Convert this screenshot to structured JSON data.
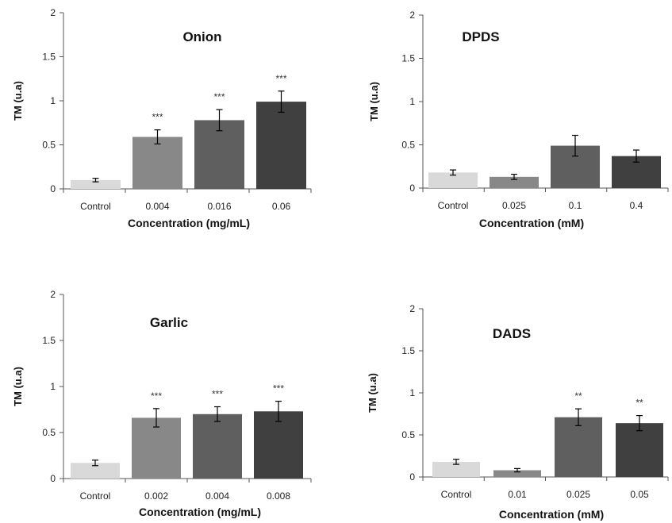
{
  "chart_data": [
    {
      "type": "bar",
      "title": "Onion",
      "xlabel": "Concentration (mg/mL)",
      "ylabel": "TM (u.a)",
      "ylim": [
        0,
        2
      ],
      "yticks": [
        "0",
        "0.5",
        "1",
        "1.5",
        "2"
      ],
      "categories": [
        "Control",
        "0.004",
        "0.016",
        "0.06"
      ],
      "values": [
        0.1,
        0.59,
        0.78,
        0.99
      ],
      "errors": [
        0.02,
        0.08,
        0.12,
        0.12
      ],
      "significance": [
        "",
        "***",
        "***",
        "***"
      ],
      "colors": [
        "#d9d9d9",
        "#888888",
        "#5f5f5f",
        "#404040"
      ]
    },
    {
      "type": "bar",
      "title": "DPDS",
      "xlabel": "Concentration (mM)",
      "ylabel": "TM (u.a)",
      "ylim": [
        0,
        2
      ],
      "yticks": [
        "0",
        "0.5",
        "1",
        "1.5",
        "2"
      ],
      "categories": [
        "Control",
        "0.025",
        "0.1",
        "0.4"
      ],
      "values": [
        0.18,
        0.13,
        0.49,
        0.37
      ],
      "errors": [
        0.03,
        0.03,
        0.12,
        0.07
      ],
      "significance": [
        "",
        "",
        "",
        ""
      ],
      "colors": [
        "#d9d9d9",
        "#888888",
        "#5f5f5f",
        "#404040"
      ]
    },
    {
      "type": "bar",
      "title": "Garlic",
      "xlabel": "Concentration (mg/mL)",
      "ylabel": "TM (u.a)",
      "ylim": [
        0,
        2
      ],
      "yticks": [
        "0",
        "0.5",
        "1",
        "1.5",
        "2"
      ],
      "categories": [
        "Control",
        "0.002",
        "0.004",
        "0.008"
      ],
      "values": [
        0.17,
        0.66,
        0.7,
        0.73
      ],
      "errors": [
        0.03,
        0.1,
        0.08,
        0.11
      ],
      "significance": [
        "",
        "***",
        "***",
        "***"
      ],
      "colors": [
        "#d9d9d9",
        "#888888",
        "#5f5f5f",
        "#404040"
      ]
    },
    {
      "type": "bar",
      "title": "DADS",
      "xlabel": "Concentration (mM)",
      "ylabel": "TM (u.a)",
      "ylim": [
        0,
        2
      ],
      "yticks": [
        "0",
        "0.5",
        "1",
        "1.5",
        "2"
      ],
      "categories": [
        "Control",
        "0.01",
        "0.025",
        "0.05"
      ],
      "values": [
        0.18,
        0.08,
        0.71,
        0.64
      ],
      "errors": [
        0.03,
        0.02,
        0.1,
        0.09
      ],
      "significance": [
        "",
        "",
        "**",
        "**"
      ],
      "colors": [
        "#d9d9d9",
        "#888888",
        "#5f5f5f",
        "#404040"
      ]
    }
  ]
}
